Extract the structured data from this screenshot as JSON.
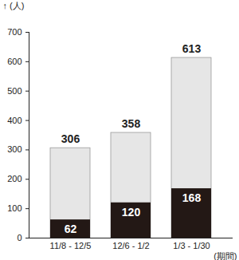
{
  "chart_data": {
    "type": "bar",
    "x_label": "(期間)",
    "y_label": "(人)",
    "categories": [
      "11/8 - 12/5",
      "12/6 - 1/2",
      "1/3 - 1/30"
    ],
    "series": [
      {
        "color": "#e6e6e6",
        "values": [
          306,
          358,
          613
        ]
      },
      {
        "color": "#231815",
        "values": [
          62,
          120,
          168
        ]
      }
    ],
    "stacked": false,
    "data_labels": true,
    "ylim": [
      0,
      700
    ],
    "yticks": [
      0,
      100,
      200,
      300,
      400,
      500,
      600,
      700
    ]
  }
}
